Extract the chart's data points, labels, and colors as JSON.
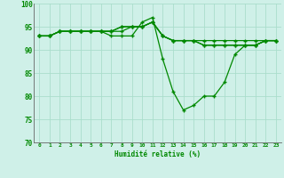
{
  "title": "",
  "xlabel": "Humidité relative (%)",
  "ylabel": "",
  "background_color": "#cff0e8",
  "grid_color": "#aaddcc",
  "line_color": "#008800",
  "ylim": [
    70,
    100
  ],
  "xlim": [
    -0.5,
    23.5
  ],
  "yticks": [
    70,
    75,
    80,
    85,
    90,
    95,
    100
  ],
  "xticks": [
    0,
    1,
    2,
    3,
    4,
    5,
    6,
    7,
    8,
    9,
    10,
    11,
    12,
    13,
    14,
    15,
    16,
    17,
    18,
    19,
    20,
    21,
    22,
    23
  ],
  "series": [
    [
      93,
      93,
      94,
      94,
      94,
      94,
      94,
      93,
      93,
      93,
      96,
      97,
      88,
      81,
      77,
      78,
      80,
      80,
      83,
      89,
      91,
      91,
      92,
      92
    ],
    [
      93,
      93,
      94,
      94,
      94,
      94,
      94,
      94,
      94,
      95,
      95,
      96,
      93,
      92,
      92,
      92,
      91,
      91,
      91,
      91,
      91,
      91,
      92,
      92
    ],
    [
      93,
      93,
      94,
      94,
      94,
      94,
      94,
      94,
      95,
      95,
      95,
      96,
      93,
      92,
      92,
      92,
      91,
      91,
      91,
      91,
      91,
      91,
      92,
      92
    ],
    [
      93,
      93,
      94,
      94,
      94,
      94,
      94,
      94,
      95,
      95,
      95,
      96,
      93,
      92,
      92,
      92,
      92,
      92,
      92,
      92,
      92,
      92,
      92,
      92
    ]
  ]
}
